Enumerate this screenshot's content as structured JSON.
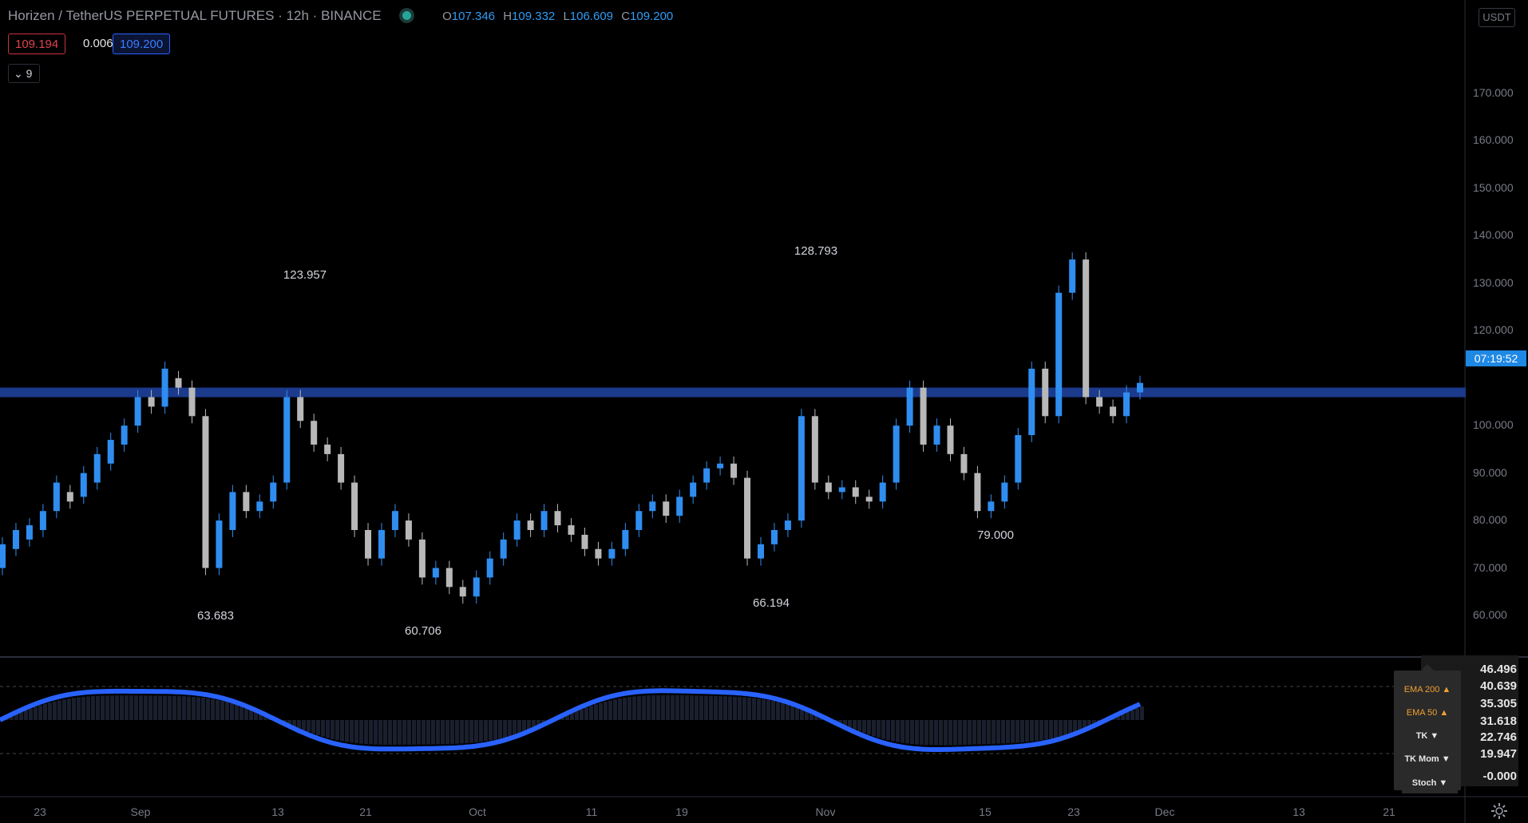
{
  "header": {
    "symbol_title": "Horizen / TetherUS PERPETUAL FUTURES · 12h · BINANCE",
    "ohlc": {
      "o_label": "O",
      "o": "107.346",
      "h_label": "H",
      "h": "109.332",
      "l_label": "L",
      "l": "106.609",
      "c_label": "C",
      "c": "109.200"
    },
    "status_color": "#26a69a"
  },
  "trade": {
    "sell": "109.194",
    "spread": "0.006",
    "buy": "109.200"
  },
  "collapse_label": "9",
  "axis": {
    "currency": "USDT",
    "price_ticks": [
      "170.000",
      "160.000",
      "150.000",
      "140.000",
      "130.000",
      "120.000",
      "100.000",
      "90.000",
      "80.000",
      "70.000",
      "60.000"
    ],
    "timer": "07:19:52"
  },
  "time_axis": [
    "23",
    "Sep",
    "13",
    "21",
    "Oct",
    "11",
    "19",
    "Nov",
    "15",
    "23",
    "Dec",
    "13",
    "21"
  ],
  "callouts": [
    "123.957",
    "63.683",
    "60.706",
    "128.793",
    "66.194",
    "79.000"
  ],
  "oscillator": {
    "values": [
      "46.496",
      "40.639",
      "35.305",
      "31.618",
      "22.746",
      "19.947",
      "-0.000"
    ]
  },
  "legend": {
    "items": [
      "EMA 200 ▲",
      "EMA 50 ▲",
      "TK ▼",
      "TK Mom ▼"
    ],
    "stoch": "Stoch ▼"
  },
  "colors": {
    "bull": "#2f8df0",
    "bear": "#b8b8b8",
    "level": "#1b3a8c",
    "osc_line": "#2962ff"
  },
  "chart_data": {
    "type": "candlestick",
    "title": "Horizen / TetherUS PERPETUAL FUTURES · 12h · BINANCE",
    "ylim": [
      55,
      175
    ],
    "level_line": 107,
    "candles": [
      [
        70,
        75
      ],
      [
        74,
        78
      ],
      [
        76,
        79
      ],
      [
        78,
        82
      ],
      [
        82,
        88
      ],
      [
        86,
        84
      ],
      [
        85,
        90
      ],
      [
        88,
        94
      ],
      [
        92,
        97
      ],
      [
        96,
        100
      ],
      [
        100,
        106
      ],
      [
        106,
        104
      ],
      [
        104,
        112
      ],
      [
        110,
        108
      ],
      [
        108,
        102
      ],
      [
        102,
        70
      ],
      [
        70,
        80
      ],
      [
        78,
        86
      ],
      [
        86,
        82
      ],
      [
        82,
        84
      ],
      [
        84,
        88
      ],
      [
        88,
        106
      ],
      [
        106,
        101
      ],
      [
        101,
        96
      ],
      [
        96,
        94
      ],
      [
        94,
        88
      ],
      [
        88,
        78
      ],
      [
        78,
        72
      ],
      [
        72,
        78
      ],
      [
        78,
        82
      ],
      [
        80,
        76
      ],
      [
        76,
        68
      ],
      [
        68,
        70
      ],
      [
        70,
        66
      ],
      [
        66,
        64
      ],
      [
        64,
        68
      ],
      [
        68,
        72
      ],
      [
        72,
        76
      ],
      [
        76,
        80
      ],
      [
        80,
        78
      ],
      [
        78,
        82
      ],
      [
        82,
        79
      ],
      [
        79,
        77
      ],
      [
        77,
        74
      ],
      [
        74,
        72
      ],
      [
        72,
        74
      ],
      [
        74,
        78
      ],
      [
        78,
        82
      ],
      [
        82,
        84
      ],
      [
        84,
        81
      ],
      [
        81,
        85
      ],
      [
        85,
        88
      ],
      [
        88,
        91
      ],
      [
        91,
        92
      ],
      [
        92,
        89
      ],
      [
        89,
        72
      ],
      [
        72,
        75
      ],
      [
        75,
        78
      ],
      [
        78,
        80
      ],
      [
        80,
        102
      ],
      [
        102,
        88
      ],
      [
        88,
        86
      ],
      [
        86,
        87
      ],
      [
        87,
        85
      ],
      [
        85,
        84
      ],
      [
        84,
        88
      ],
      [
        88,
        100
      ],
      [
        100,
        108
      ],
      [
        108,
        96
      ],
      [
        96,
        100
      ],
      [
        100,
        94
      ],
      [
        94,
        90
      ],
      [
        90,
        82
      ],
      [
        82,
        84
      ],
      [
        84,
        88
      ],
      [
        88,
        98
      ],
      [
        98,
        112
      ],
      [
        112,
        102
      ],
      [
        102,
        128
      ],
      [
        128,
        135
      ],
      [
        135,
        106
      ],
      [
        106,
        104
      ],
      [
        104,
        102
      ],
      [
        102,
        107
      ],
      [
        107,
        109
      ]
    ]
  }
}
